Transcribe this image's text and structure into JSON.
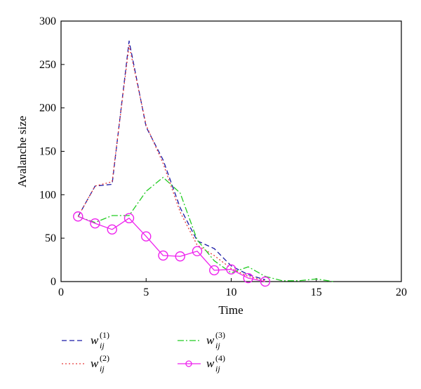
{
  "chart_data": {
    "type": "line",
    "xlabel": "Time",
    "ylabel": "Avalanche size",
    "xlim": [
      0,
      20
    ],
    "ylim": [
      0,
      300
    ],
    "xticks": [
      "0",
      "5",
      "10",
      "15",
      "20"
    ],
    "yticks": [
      "0",
      "50",
      "100",
      "150",
      "200",
      "250",
      "300"
    ],
    "grid": false,
    "legend_position": "below",
    "series": [
      {
        "name": "w_ij^(1)",
        "name_base": "w",
        "name_sub": "ij",
        "name_sup": "(1)",
        "color": "#1a1aa6",
        "style": "dashed",
        "x": [
          1,
          2,
          3,
          4,
          5,
          6,
          7,
          8,
          9,
          10,
          11,
          12
        ],
        "y": [
          75,
          110,
          112,
          277,
          178,
          140,
          85,
          47,
          38,
          18,
          8,
          2
        ]
      },
      {
        "name": "w_ij^(2)",
        "name_base": "w",
        "name_sub": "ij",
        "name_sup": "(2)",
        "color": "#e63b3b",
        "style": "dotted",
        "x": [
          1,
          2,
          3,
          4,
          5,
          6,
          7,
          8,
          9,
          10,
          11,
          12
        ],
        "y": [
          75,
          110,
          115,
          272,
          180,
          136,
          80,
          42,
          30,
          15,
          6,
          1
        ]
      },
      {
        "name": "w_ij^(3)",
        "name_base": "w",
        "name_sub": "ij",
        "name_sup": "(3)",
        "color": "#22cc22",
        "style": "dashdot",
        "x": [
          1,
          2,
          3,
          4,
          5,
          6,
          7,
          8,
          9,
          10,
          11,
          12,
          13,
          14,
          15,
          16
        ],
        "y": [
          75,
          68,
          76,
          76,
          104,
          120,
          102,
          48,
          24,
          10,
          17,
          6,
          1,
          1,
          3,
          0
        ]
      },
      {
        "name": "w_ij^(4)",
        "name_base": "w",
        "name_sub": "ij",
        "name_sup": "(4)",
        "color": "#ee22ee",
        "style": "solid-circle",
        "x": [
          1,
          2,
          3,
          4,
          5,
          6,
          7,
          8,
          9,
          10,
          11,
          12
        ],
        "y": [
          75,
          67,
          60,
          73,
          52,
          30,
          29,
          35,
          13,
          14,
          4,
          0
        ]
      }
    ]
  }
}
